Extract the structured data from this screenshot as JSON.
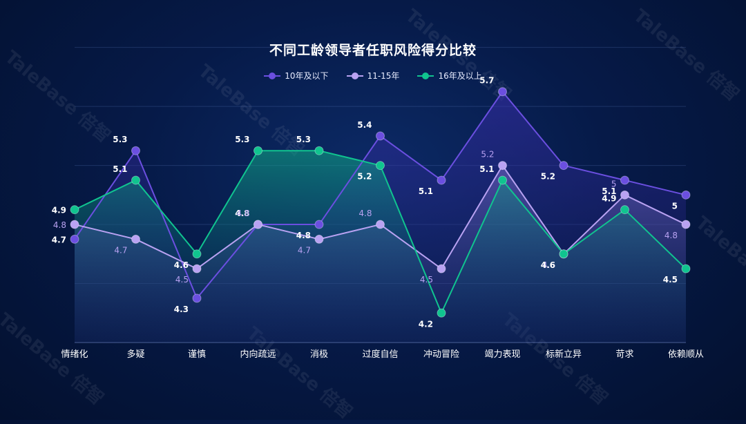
{
  "watermark": "TaleBase 倍智",
  "chart_data": {
    "type": "line",
    "title": "不同工龄领导者任职风险得分比较",
    "categories": [
      "情绪化",
      "多疑",
      "谨慎",
      "内向疏远",
      "消极",
      "过度自信",
      "冲动冒险",
      "竭力表现",
      "标新立异",
      "苛求",
      "依赖顺从"
    ],
    "series": [
      {
        "name": "10年及以下",
        "color": "#6b4fe0",
        "values": [
          4.7,
          5.3,
          4.3,
          4.8,
          4.8,
          5.4,
          5.1,
          5.7,
          5.2,
          5.1,
          5
        ]
      },
      {
        "name": "11-15年",
        "color": "#b9a2f2",
        "values": [
          4.8,
          4.7,
          4.5,
          4.8,
          4.7,
          4.8,
          4.5,
          5.2,
          4.6,
          5,
          4.8
        ]
      },
      {
        "name": "16年及以上",
        "color": "#10c48f",
        "values": [
          4.9,
          5.1,
          4.6,
          5.3,
          5.3,
          5.2,
          4.2,
          5.1,
          4.6,
          4.9,
          4.5
        ]
      }
    ],
    "ylim": [
      4.0,
      5.9
    ],
    "grid": true,
    "legend_position": "top-center"
  }
}
